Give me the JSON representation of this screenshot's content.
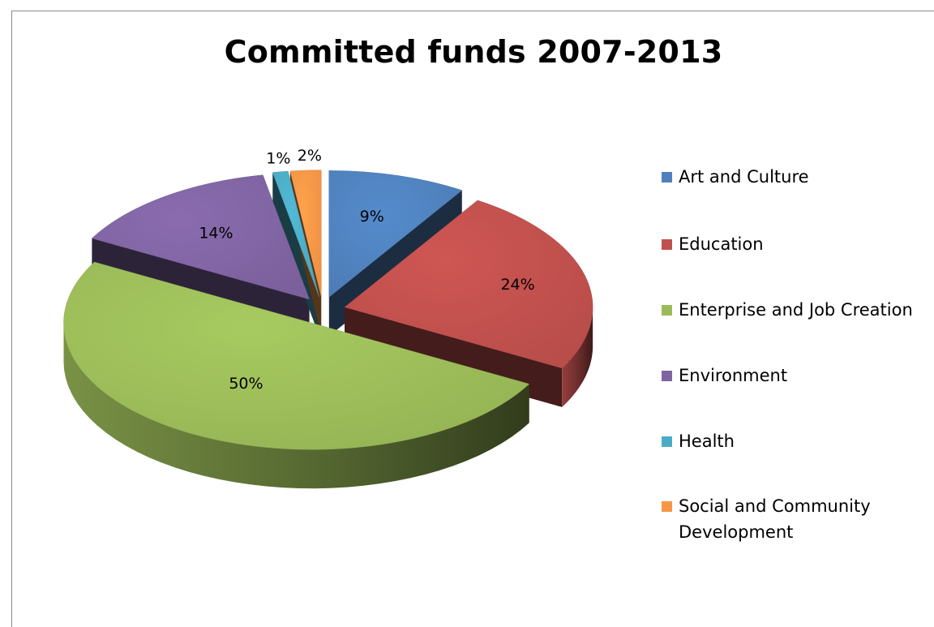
{
  "chart_data": {
    "type": "pie",
    "title": "Committed funds 2007-2013",
    "categories": [
      "Art and Culture",
      "Education",
      "Enterprise and Job Creation",
      "Environment",
      "Health",
      "Social and Community Development"
    ],
    "values": [
      9,
      24,
      50,
      14,
      1,
      2
    ],
    "data_labels": [
      "9%",
      "24%",
      "50%",
      "14%",
      "1%",
      "2%"
    ],
    "colors": [
      "#4F81BD",
      "#C0504D",
      "#9BBB59",
      "#8064A2",
      "#4BACC6",
      "#F79646"
    ],
    "legend_position": "right",
    "style": "3d-exploded"
  }
}
